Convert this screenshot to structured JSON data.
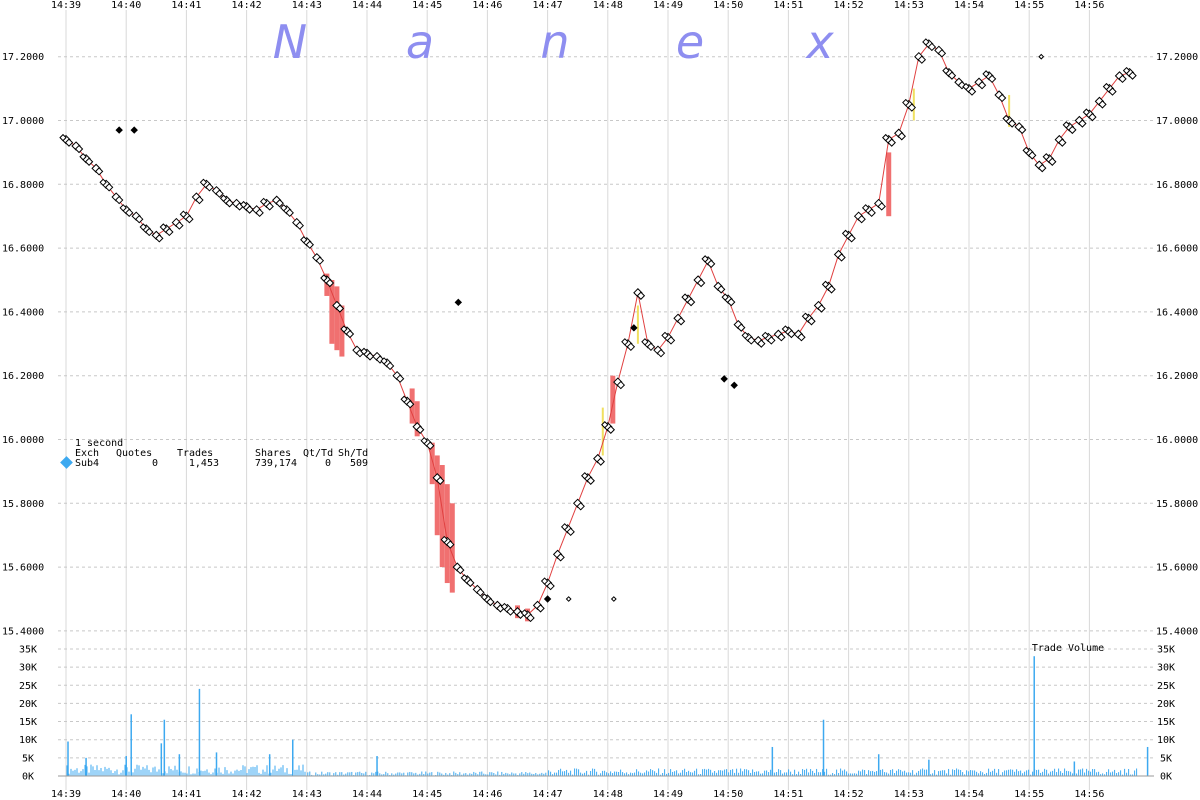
{
  "brand_letters": [
    "N",
    "a",
    "n",
    "e",
    "x"
  ],
  "info_panel": {
    "interval": "1 second",
    "headers": [
      "Exch",
      "Quotes",
      "Trades",
      "Shares",
      "Qt/Td",
      "Sh/Td"
    ],
    "row": {
      "exch": "Sub4",
      "quotes": "0",
      "trades": "1,453",
      "shares": "739,174",
      "qt_td": "0",
      "sh_td": "509"
    },
    "swatch_color": "#3da9f0"
  },
  "chart_data": [
    {
      "type": "line",
      "x_labels": [
        "14:39",
        "14:40",
        "14:41",
        "14:42",
        "14:43",
        "14:44",
        "14:45",
        "14:46",
        "14:47",
        "14:48",
        "14:49",
        "14:50",
        "14:51",
        "14:52",
        "14:53",
        "14:54",
        "14:55",
        "14:56"
      ],
      "y_tick_labels": [
        "17.2000",
        "17.0000",
        "16.8000",
        "16.6000",
        "16.4000",
        "16.2000",
        "16.0000",
        "15.8000",
        "15.6000",
        "15.4000"
      ],
      "ylim": [
        15.4,
        17.3
      ],
      "grid": true,
      "series": [
        {
          "marker": "diamond-open",
          "color": "#000000",
          "points": [
            [
              "14:39:00",
              16.94
            ],
            [
              "14:39:10",
              16.92
            ],
            [
              "14:39:20",
              16.88
            ],
            [
              "14:39:30",
              16.85
            ],
            [
              "14:39:40",
              16.8
            ],
            [
              "14:39:50",
              16.76
            ],
            [
              "14:40:00",
              16.72
            ],
            [
              "14:40:10",
              16.7
            ],
            [
              "14:40:20",
              16.66
            ],
            [
              "14:40:30",
              16.64
            ],
            [
              "14:40:40",
              16.66
            ],
            [
              "14:40:50",
              16.68
            ],
            [
              "14:41:00",
              16.7
            ],
            [
              "14:41:10",
              16.76
            ],
            [
              "14:41:20",
              16.8
            ],
            [
              "14:41:30",
              16.78
            ],
            [
              "14:41:40",
              16.75
            ],
            [
              "14:41:50",
              16.74
            ],
            [
              "14:42:00",
              16.73
            ],
            [
              "14:42:10",
              16.72
            ],
            [
              "14:42:20",
              16.74
            ],
            [
              "14:42:30",
              16.75
            ],
            [
              "14:42:40",
              16.72
            ],
            [
              "14:42:50",
              16.68
            ],
            [
              "14:43:00",
              16.62
            ],
            [
              "14:43:10",
              16.57
            ],
            [
              "14:43:20",
              16.5
            ],
            [
              "14:43:30",
              16.42
            ],
            [
              "14:43:40",
              16.34
            ],
            [
              "14:43:50",
              16.28
            ],
            [
              "14:44:00",
              16.27
            ],
            [
              "14:44:10",
              16.26
            ],
            [
              "14:44:20",
              16.24
            ],
            [
              "14:44:30",
              16.2
            ],
            [
              "14:44:40",
              16.12
            ],
            [
              "14:44:50",
              16.04
            ],
            [
              "14:45:00",
              15.99
            ],
            [
              "14:45:10",
              15.88
            ],
            [
              "14:45:20",
              15.68
            ],
            [
              "14:45:30",
              15.6
            ],
            [
              "14:45:40",
              15.56
            ],
            [
              "14:45:50",
              15.53
            ],
            [
              "14:46:00",
              15.5
            ],
            [
              "14:46:10",
              15.48
            ],
            [
              "14:46:20",
              15.47
            ],
            [
              "14:46:30",
              15.46
            ],
            [
              "14:46:40",
              15.45
            ],
            [
              "14:46:50",
              15.48
            ],
            [
              "14:47:00",
              15.55
            ],
            [
              "14:47:10",
              15.64
            ],
            [
              "14:47:20",
              15.72
            ],
            [
              "14:47:30",
              15.8
            ],
            [
              "14:47:40",
              15.88
            ],
            [
              "14:47:50",
              15.94
            ],
            [
              "14:48:00",
              16.04
            ],
            [
              "14:48:10",
              16.18
            ],
            [
              "14:48:20",
              16.3
            ],
            [
              "14:48:30",
              16.46
            ],
            [
              "14:48:40",
              16.3
            ],
            [
              "14:48:50",
              16.28
            ],
            [
              "14:49:00",
              16.32
            ],
            [
              "14:49:10",
              16.38
            ],
            [
              "14:49:20",
              16.44
            ],
            [
              "14:49:30",
              16.5
            ],
            [
              "14:49:40",
              16.56
            ],
            [
              "14:49:50",
              16.48
            ],
            [
              "14:50:00",
              16.44
            ],
            [
              "14:50:10",
              16.36
            ],
            [
              "14:50:20",
              16.32
            ],
            [
              "14:50:30",
              16.31
            ],
            [
              "14:50:40",
              16.32
            ],
            [
              "14:50:50",
              16.33
            ],
            [
              "14:51:00",
              16.34
            ],
            [
              "14:51:10",
              16.33
            ],
            [
              "14:51:20",
              16.38
            ],
            [
              "14:51:30",
              16.42
            ],
            [
              "14:51:40",
              16.48
            ],
            [
              "14:51:50",
              16.58
            ],
            [
              "14:52:00",
              16.64
            ],
            [
              "14:52:10",
              16.7
            ],
            [
              "14:52:20",
              16.72
            ],
            [
              "14:52:30",
              16.74
            ],
            [
              "14:52:40",
              16.94
            ],
            [
              "14:52:50",
              16.96
            ],
            [
              "14:53:00",
              17.05
            ],
            [
              "14:53:10",
              17.2
            ],
            [
              "14:53:20",
              17.24
            ],
            [
              "14:53:30",
              17.22
            ],
            [
              "14:53:40",
              17.15
            ],
            [
              "14:53:50",
              17.12
            ],
            [
              "14:54:00",
              17.1
            ],
            [
              "14:54:10",
              17.12
            ],
            [
              "14:54:20",
              17.14
            ],
            [
              "14:54:30",
              17.08
            ],
            [
              "14:54:40",
              17.0
            ],
            [
              "14:54:50",
              16.98
            ],
            [
              "14:55:00",
              16.9
            ],
            [
              "14:55:10",
              16.86
            ],
            [
              "14:55:20",
              16.88
            ],
            [
              "14:55:30",
              16.94
            ],
            [
              "14:55:40",
              16.98
            ],
            [
              "14:55:50",
              17.0
            ],
            [
              "14:56:00",
              17.02
            ],
            [
              "14:56:10",
              17.06
            ],
            [
              "14:56:20",
              17.1
            ],
            [
              "14:56:30",
              17.14
            ],
            [
              "14:56:40",
              17.15
            ]
          ]
        },
        {
          "marker": "diamond-filled",
          "color": "#000000",
          "points": [
            [
              "14:39:53",
              16.97
            ],
            [
              "14:40:08",
              16.97
            ],
            [
              "14:45:31",
              16.43
            ],
            [
              "14:47:00",
              15.5
            ],
            [
              "14:48:26",
              16.35
            ],
            [
              "14:49:56",
              16.19
            ],
            [
              "14:50:06",
              16.17
            ]
          ]
        },
        {
          "marker": "diamond-small",
          "color": "#000000",
          "points": [
            [
              "14:47:21",
              15.5
            ],
            [
              "14:48:06",
              15.5
            ],
            [
              "14:55:12",
              17.2
            ]
          ]
        }
      ],
      "bands": {
        "color": "#f07070",
        "ranges": [
          [
            "14:43:20",
            16.52,
            16.45
          ],
          [
            "14:43:25",
            16.5,
            16.3
          ],
          [
            "14:43:30",
            16.48,
            16.28
          ],
          [
            "14:43:35",
            16.42,
            16.26
          ],
          [
            "14:44:45",
            16.16,
            16.05
          ],
          [
            "14:44:50",
            16.12,
            16.01
          ],
          [
            "14:45:05",
            15.99,
            15.86
          ],
          [
            "14:45:10",
            15.95,
            15.7
          ],
          [
            "14:45:15",
            15.92,
            15.6
          ],
          [
            "14:45:20",
            15.86,
            15.55
          ],
          [
            "14:45:25",
            15.8,
            15.52
          ],
          [
            "14:46:30",
            15.48,
            15.44
          ],
          [
            "14:46:40",
            15.47,
            15.43
          ],
          [
            "14:52:40",
            16.9,
            16.7
          ],
          [
            "14:48:05",
            16.2,
            16.05
          ]
        ],
        "accent_color": "#f0e060",
        "accent_ranges": [
          [
            "14:47:55",
            16.1,
            15.95
          ],
          [
            "14:48:30",
            16.42,
            16.3
          ],
          [
            "14:53:05",
            17.1,
            17.0
          ],
          [
            "14:54:40",
            17.08,
            16.98
          ]
        ]
      }
    },
    {
      "type": "bar",
      "title": "Trade Volume",
      "x_labels": [
        "14:39",
        "14:40",
        "14:41",
        "14:42",
        "14:43",
        "14:44",
        "14:45",
        "14:46",
        "14:47",
        "14:48",
        "14:49",
        "14:50",
        "14:51",
        "14:52",
        "14:53",
        "14:54",
        "14:55",
        "14:56"
      ],
      "y_tick_labels": [
        "35K",
        "30K",
        "25K",
        "20K",
        "15K",
        "10K",
        "5K",
        "0K"
      ],
      "ylim": [
        0,
        35000
      ],
      "color": "#3da9f0",
      "spikes": [
        [
          "14:39:02",
          9500
        ],
        [
          "14:39:20",
          5000
        ],
        [
          "14:40:00",
          5500
        ],
        [
          "14:40:05",
          17000
        ],
        [
          "14:40:35",
          9000
        ],
        [
          "14:40:38",
          15500
        ],
        [
          "14:40:53",
          6000
        ],
        [
          "14:41:13",
          24000
        ],
        [
          "14:41:30",
          6500
        ],
        [
          "14:42:23",
          6000
        ],
        [
          "14:42:46",
          10000
        ],
        [
          "14:44:10",
          5500
        ],
        [
          "14:50:44",
          8000
        ],
        [
          "14:51:35",
          15500
        ],
        [
          "14:52:30",
          6000
        ],
        [
          "14:53:20",
          4500
        ],
        [
          "14:55:05",
          33000
        ],
        [
          "14:55:45",
          4000
        ],
        [
          "14:56:58",
          8000
        ]
      ],
      "baseline_ranges": [
        [
          "14:39:00",
          "14:43:00",
          3000
        ],
        [
          "14:43:00",
          "14:47:00",
          1200
        ],
        [
          "14:47:00",
          "14:57:00",
          2000
        ]
      ]
    }
  ]
}
